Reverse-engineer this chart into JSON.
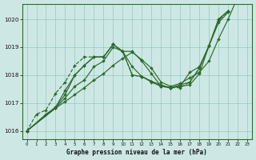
{
  "xlabel": "Graphe pression niveau de la mer (hPa)",
  "background_color": "#cde8e4",
  "grid_color": "#9ec8c4",
  "line_color": "#2d6a2d",
  "ylim": [
    1015.7,
    1020.55
  ],
  "xlim": [
    -0.5,
    23.5
  ],
  "yticks": [
    1016,
    1017,
    1018,
    1019,
    1020
  ],
  "xticks": [
    0,
    1,
    2,
    3,
    4,
    5,
    6,
    7,
    8,
    9,
    10,
    11,
    12,
    13,
    14,
    15,
    16,
    17,
    18,
    19,
    20,
    21,
    22,
    23
  ],
  "series": [
    {
      "x": [
        0,
        1,
        2,
        3,
        4,
        5,
        6,
        7,
        8,
        9,
        10,
        11,
        12,
        13,
        14,
        15,
        16,
        17,
        18,
        19,
        20,
        21
      ],
      "y": [
        1016.0,
        1016.6,
        1016.75,
        1017.35,
        1017.75,
        1018.35,
        1018.65,
        1018.65,
        1018.65,
        1019.1,
        1018.85,
        1018.0,
        1017.95,
        1017.78,
        1017.6,
        1017.55,
        1017.55,
        1017.75,
        1018.25,
        1019.05,
        1019.95,
        1020.3
      ],
      "linestyle": "--"
    },
    {
      "x": [
        0,
        2,
        3,
        4,
        5,
        6,
        7,
        8,
        9,
        10,
        11,
        12,
        13,
        14,
        15,
        16,
        17,
        18,
        19,
        20,
        21
      ],
      "y": [
        1016.0,
        1016.6,
        1016.85,
        1017.45,
        1018.0,
        1018.35,
        1018.65,
        1018.65,
        1019.1,
        1018.85,
        1018.85,
        1018.5,
        1018.05,
        1017.6,
        1017.55,
        1017.6,
        1017.65,
        1018.05,
        1019.05,
        1020.0,
        1020.3
      ],
      "linestyle": "-"
    },
    {
      "x": [
        0,
        3,
        4,
        5,
        6,
        7,
        8,
        9,
        10,
        11,
        12,
        13,
        14,
        15,
        16,
        17,
        18,
        19,
        20,
        21
      ],
      "y": [
        1016.0,
        1016.85,
        1017.3,
        1018.0,
        1018.35,
        1018.65,
        1018.65,
        1019.1,
        1018.85,
        1018.3,
        1017.95,
        1017.78,
        1017.65,
        1017.55,
        1017.6,
        1018.1,
        1018.3,
        1019.05,
        1020.0,
        1020.3
      ],
      "linestyle": "-"
    },
    {
      "x": [
        0,
        3,
        4,
        5,
        6,
        7,
        8,
        9,
        10,
        11,
        12,
        13,
        14,
        15,
        16,
        17,
        18,
        19,
        20,
        21,
        22,
        23
      ],
      "y": [
        1016.0,
        1016.82,
        1017.05,
        1017.3,
        1017.55,
        1017.82,
        1018.05,
        1018.35,
        1018.6,
        1018.82,
        1018.55,
        1018.25,
        1017.75,
        1017.6,
        1017.7,
        1017.9,
        1018.1,
        1018.5,
        1019.3,
        1020.0,
        1020.8,
        1021.5
      ],
      "linestyle": "-"
    },
    {
      "x": [
        0,
        3,
        4,
        5,
        6,
        7,
        8,
        9,
        10,
        11,
        12,
        13,
        14,
        15,
        16,
        17,
        18,
        19,
        20,
        21
      ],
      "y": [
        1016.0,
        1016.82,
        1017.18,
        1017.6,
        1017.82,
        1018.3,
        1018.5,
        1019.0,
        1018.85,
        1018.0,
        1017.95,
        1017.75,
        1017.6,
        1017.55,
        1017.65,
        1017.75,
        1018.25,
        1019.05,
        1019.88,
        1020.25
      ],
      "linestyle": "-"
    }
  ]
}
